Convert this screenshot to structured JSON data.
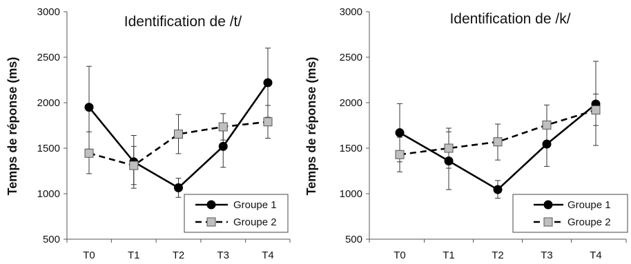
{
  "chart_data": [
    {
      "type": "line",
      "title": "Identification de /t/",
      "ylabel": "Temps de réponse (ms)",
      "xlabel": "",
      "categories": [
        "T0",
        "T1",
        "T2",
        "T3",
        "T4"
      ],
      "ylim": [
        500,
        3000
      ],
      "yticks": [
        500,
        1000,
        1500,
        2000,
        2500,
        3000
      ],
      "grid": false,
      "legend_position": "bottom-right",
      "series": [
        {
          "name": "Groupe 1",
          "marker": "circle",
          "line": "solid",
          "color": "#000000",
          "values": [
            1950,
            1350,
            1065,
            1520,
            2220
          ],
          "error": [
            [
              1490,
              2400
            ],
            [
              1060,
              1640
            ],
            [
              960,
              1170
            ],
            [
              1290,
              1750
            ],
            [
              1840,
              2600
            ]
          ]
        },
        {
          "name": "Groupe 2",
          "marker": "square",
          "line": "dashed",
          "color": "#000000",
          "fill": "#bfbfbf",
          "values": [
            1445,
            1310,
            1655,
            1735,
            1790
          ],
          "error": [
            [
              1220,
              1680
            ],
            [
              1100,
              1520
            ],
            [
              1440,
              1870
            ],
            [
              1590,
              1880
            ],
            [
              1610,
              1970
            ]
          ]
        }
      ]
    },
    {
      "type": "line",
      "title": "Identification de /k/",
      "ylabel": "Temps de réponse (ms)",
      "xlabel": "",
      "categories": [
        "T0",
        "T1",
        "T2",
        "T3",
        "T4"
      ],
      "ylim": [
        500,
        3000
      ],
      "yticks": [
        500,
        1000,
        1500,
        2000,
        2500,
        3000
      ],
      "grid": false,
      "legend_position": "bottom-right",
      "series": [
        {
          "name": "Groupe 1",
          "marker": "circle",
          "line": "solid",
          "color": "#000000",
          "values": [
            1670,
            1360,
            1045,
            1545,
            1985
          ],
          "error": [
            [
              1350,
              1990
            ],
            [
              1045,
              1680
            ],
            [
              950,
              1145
            ],
            [
              1300,
              1790
            ],
            [
              1530,
              2455
            ]
          ]
        },
        {
          "name": "Groupe 2",
          "marker": "square",
          "line": "dashed",
          "color": "#000000",
          "fill": "#bfbfbf",
          "values": [
            1430,
            1500,
            1570,
            1755,
            1920
          ],
          "error": [
            [
              1240,
              1620
            ],
            [
              1280,
              1720
            ],
            [
              1370,
              1765
            ],
            [
              1530,
              1975
            ],
            [
              1750,
              2095
            ]
          ]
        }
      ]
    }
  ]
}
